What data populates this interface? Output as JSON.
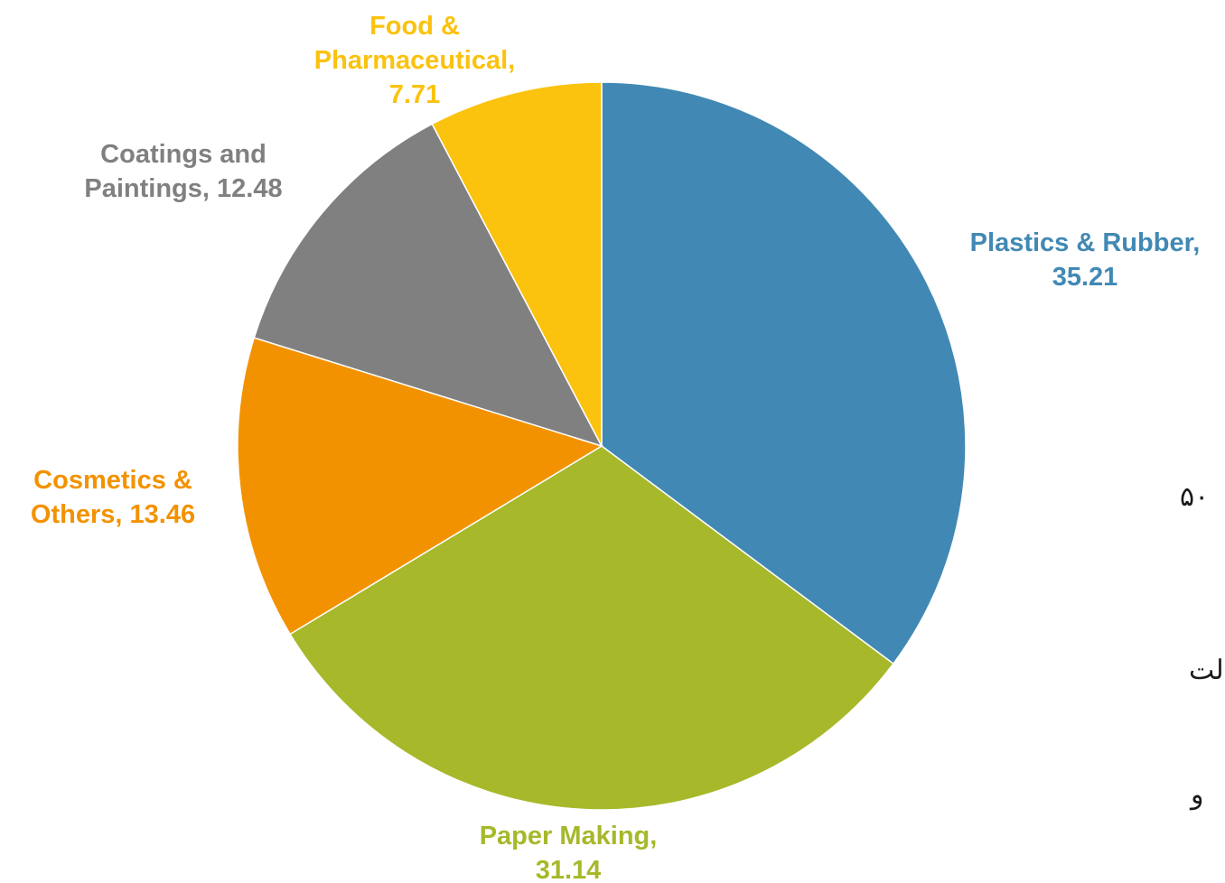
{
  "chart_data": {
    "type": "pie",
    "title": "",
    "start_angle_deg": 0,
    "direction": "clockwise",
    "slices": [
      {
        "label": "Plastics & Rubber",
        "value": 35.21,
        "color": "#4189B4",
        "label_lines": [
          "Plastics & Rubber,",
          "35.21"
        ]
      },
      {
        "label": "Paper Making",
        "value": 31.14,
        "color": "#A7B82A",
        "label_lines": [
          "Paper Making,",
          "31.14"
        ]
      },
      {
        "label": "Cosmetics & Others",
        "value": 13.46,
        "color": "#F39200",
        "label_lines": [
          "Cosmetics &",
          "Others, 13.46"
        ]
      },
      {
        "label": "Coatings and Paintings",
        "value": 12.48,
        "color": "#808080",
        "label_lines": [
          "Coatings and",
          "Paintings, 12.48"
        ]
      },
      {
        "label": "Food & Pharmaceutical",
        "value": 7.71,
        "color": "#FBC20E",
        "label_lines": [
          "Food &",
          "Pharmaceutical,",
          "7.71"
        ]
      }
    ]
  },
  "side_text": {
    "line1": "۵۰",
    "line2": "لت",
    "line3": "و"
  }
}
